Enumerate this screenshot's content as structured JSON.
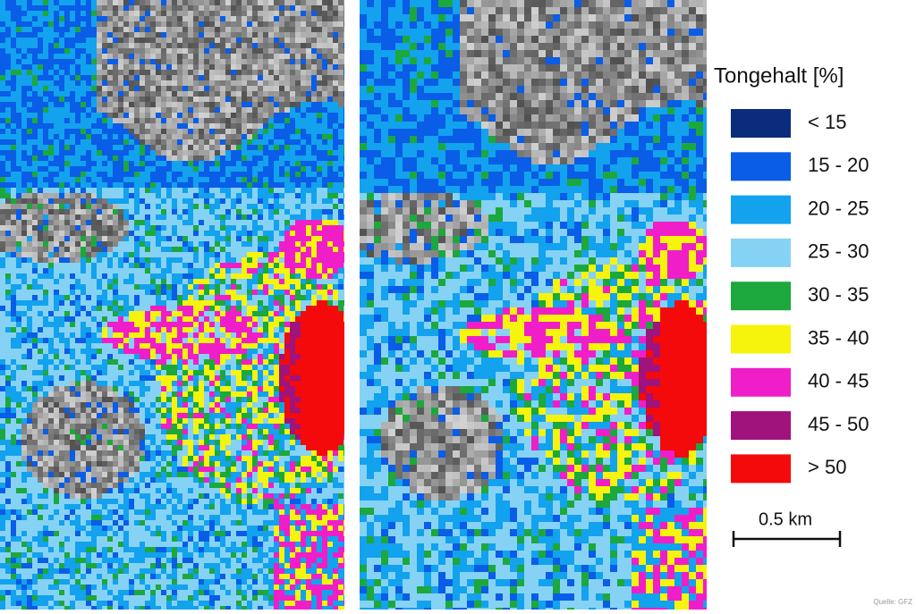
{
  "legend": {
    "title": "Tongehalt [%]",
    "items": [
      {
        "label": "< 15",
        "color": "#0b2c7c"
      },
      {
        "label": "15 - 20",
        "color": "#0a5de6"
      },
      {
        "label": "20 - 25",
        "color": "#12a2ee"
      },
      {
        "label": "25 - 30",
        "color": "#86d2f4"
      },
      {
        "label": "30 - 35",
        "color": "#1ca83c"
      },
      {
        "label": "35 - 40",
        "color": "#f6f40c"
      },
      {
        "label": "40 - 45",
        "color": "#f01ec8"
      },
      {
        "label": "45 - 50",
        "color": "#a0127c"
      },
      {
        "label": "> 50",
        "color": "#f40a0a"
      }
    ]
  },
  "scale_bar": {
    "label": "0.5 km"
  },
  "source": "Quelle: GFZ"
}
